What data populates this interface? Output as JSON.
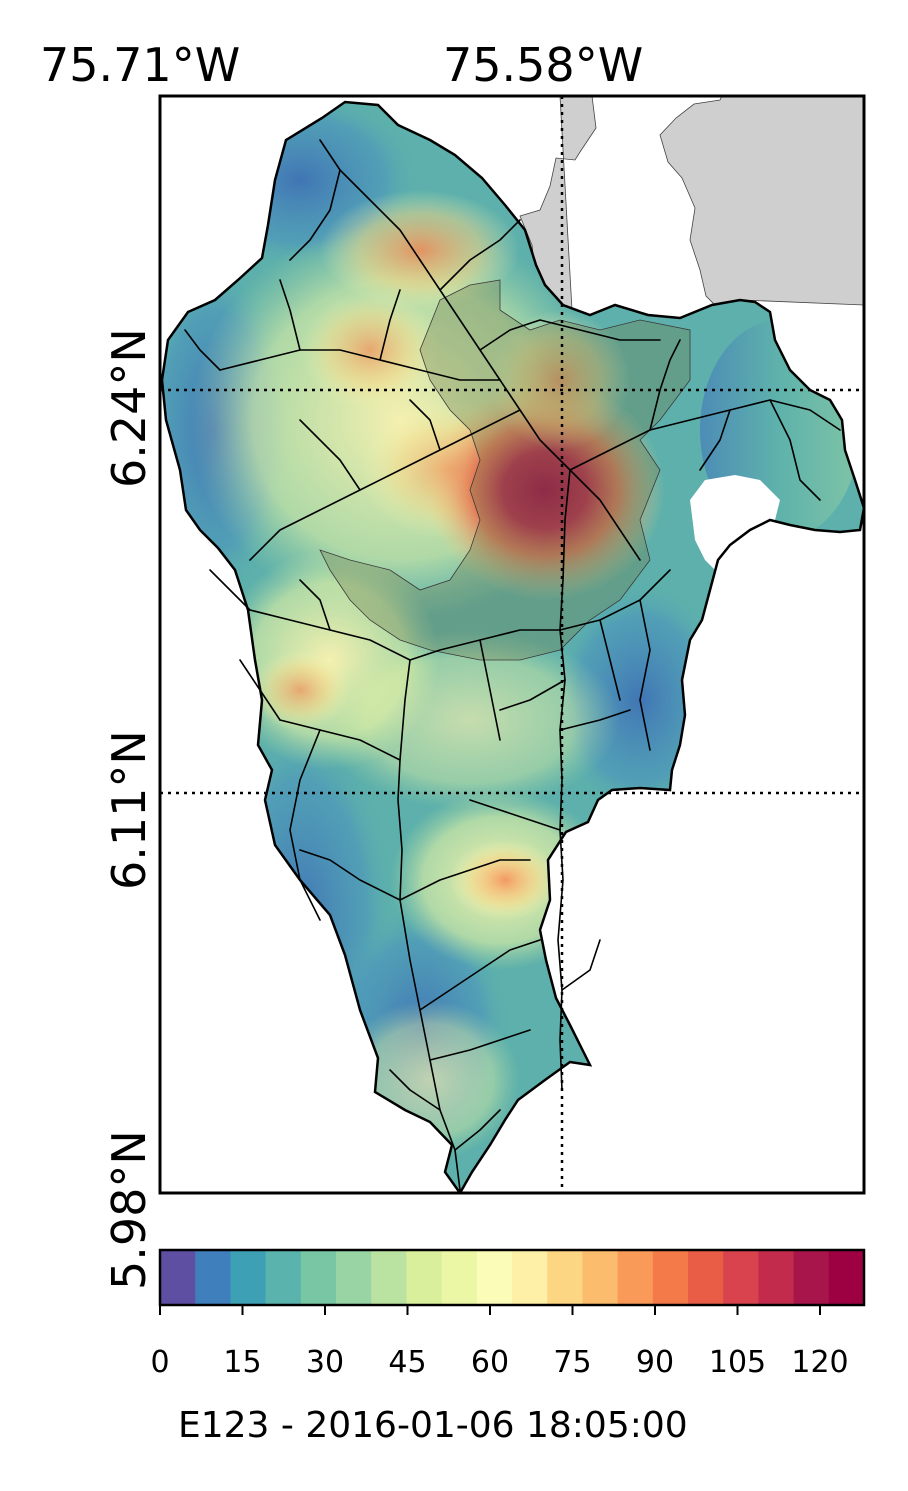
{
  "map": {
    "title": "E123 - 2016-01-06 18:05:00",
    "lon_labels": [
      "75.71°W",
      "75.58°W"
    ],
    "lat_labels": [
      "6.24°N",
      "6.11°N",
      "5.98°N"
    ],
    "lon_range_deg_w": [
      75.71,
      75.49
    ],
    "lat_range_deg_n": [
      5.98,
      6.33
    ],
    "gridlines": "dotted",
    "features": [
      "watershed-raster",
      "river-network",
      "urban-area-overlay",
      "outside-region-gray",
      "no-data-gap"
    ],
    "colors": {
      "outside_region": "#cfcfcf",
      "river": "#000000",
      "urban_overlay": "#6f7f4f",
      "no_data": "#ffffff"
    }
  },
  "colorbar": {
    "min": 0,
    "max": 128,
    "ticks": [
      "0",
      "15",
      "30",
      "45",
      "60",
      "75",
      "90",
      "105",
      "120"
    ],
    "tick_values": [
      0,
      15,
      30,
      45,
      60,
      75,
      90,
      105,
      120
    ],
    "colormap": "Spectral_r",
    "colors": [
      "#5e4fa2",
      "#3f7fbb",
      "#3ea0b5",
      "#5ab3ad",
      "#78c6a4",
      "#98d4a4",
      "#bae3a2",
      "#d9ef9b",
      "#ecf7a6",
      "#fbfcb8",
      "#fef0a6",
      "#fdd683",
      "#fcbc6e",
      "#f99a58",
      "#f47a4a",
      "#e95d46",
      "#d8434e",
      "#c22b4b",
      "#a7154a",
      "#9e0142"
    ]
  }
}
